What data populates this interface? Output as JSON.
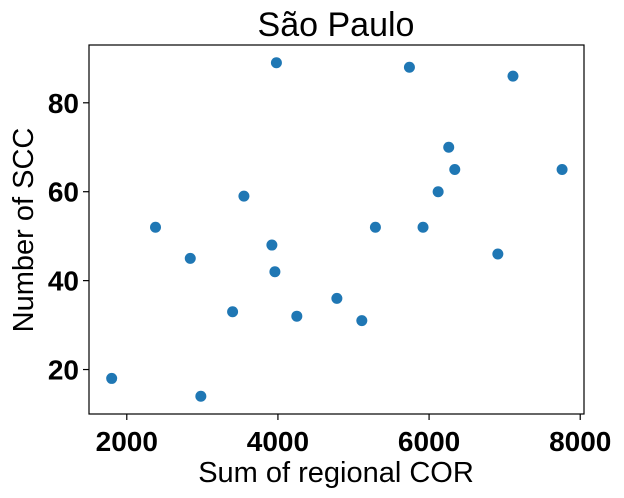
{
  "chart_data": {
    "type": "scatter",
    "title": "São Paulo",
    "xlabel": "Sum of regional COR",
    "ylabel": "Number of SCC",
    "xlim": [
      1500,
      8050
    ],
    "ylim": [
      10,
      93
    ],
    "xticks": [
      2000,
      4000,
      6000,
      8000
    ],
    "yticks": [
      20,
      40,
      60,
      80
    ],
    "grid": false,
    "color": "#1f77b4",
    "points": [
      {
        "x": 1800,
        "y": 18
      },
      {
        "x": 2380,
        "y": 52
      },
      {
        "x": 2840,
        "y": 45
      },
      {
        "x": 2980,
        "y": 14
      },
      {
        "x": 3400,
        "y": 33
      },
      {
        "x": 3550,
        "y": 59
      },
      {
        "x": 3920,
        "y": 48
      },
      {
        "x": 3960,
        "y": 42
      },
      {
        "x": 3980,
        "y": 89
      },
      {
        "x": 4250,
        "y": 32
      },
      {
        "x": 4780,
        "y": 36
      },
      {
        "x": 5110,
        "y": 31
      },
      {
        "x": 5290,
        "y": 52
      },
      {
        "x": 5740,
        "y": 88
      },
      {
        "x": 5920,
        "y": 52
      },
      {
        "x": 6120,
        "y": 60
      },
      {
        "x": 6260,
        "y": 70
      },
      {
        "x": 6340,
        "y": 65
      },
      {
        "x": 6910,
        "y": 46
      },
      {
        "x": 7110,
        "y": 86
      },
      {
        "x": 7760,
        "y": 65
      }
    ]
  }
}
